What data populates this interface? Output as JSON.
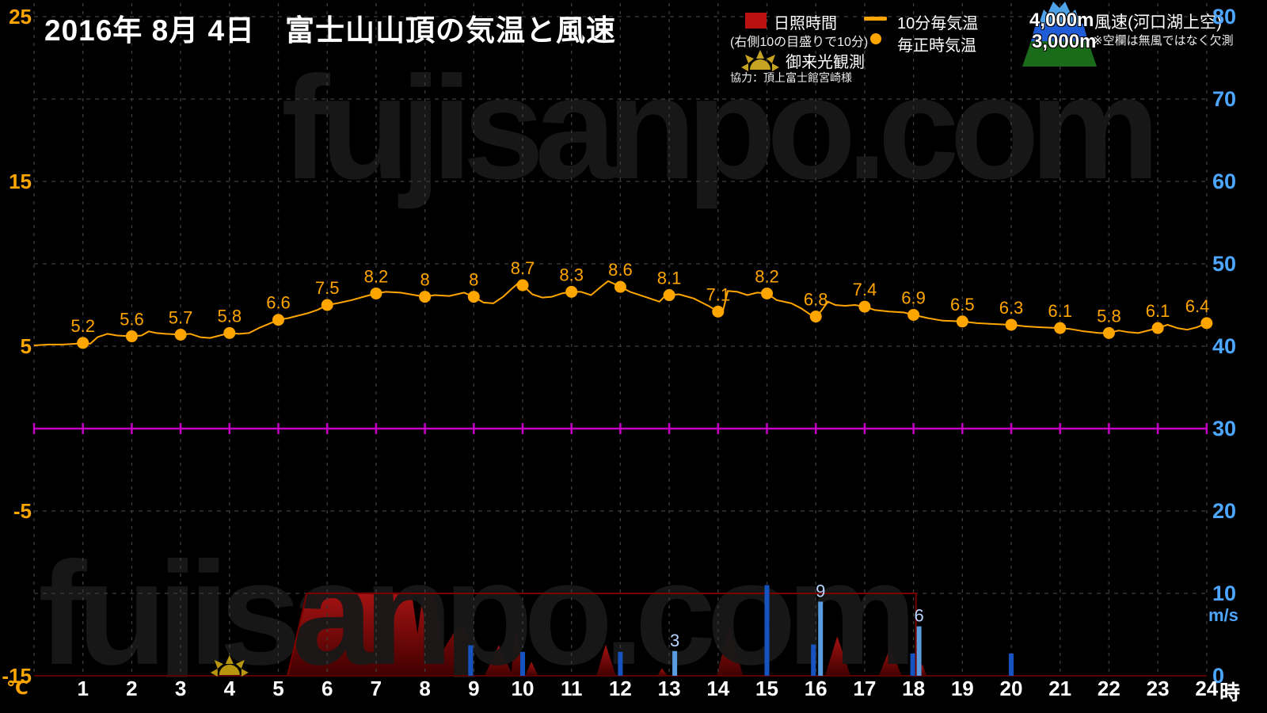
{
  "title": "2016年 8月 4日　富士山山頂の気温と風速",
  "watermark": "fujisanpo.com",
  "legend": {
    "sunshine_label": "日照時間",
    "sunshine_note": "(右側10の目盛りで10分)",
    "sunrise_label": "御来光観測",
    "credit": "協力：頂上富士館宮崎様",
    "line_label": "10分毎気温",
    "dot_label": "毎正時気温",
    "alt_4000": "4,000m",
    "alt_3000": "3,000m",
    "wind_label": "風速(河口湖上空)",
    "wind_note": "※空欄は無風ではなく欠測"
  },
  "axes": {
    "temp_unit": "℃",
    "wind_unit": "m/s",
    "hour_unit": "時",
    "temp_ticks": [
      25,
      15,
      5,
      -5,
      -15
    ],
    "wind_ticks": [
      80,
      70,
      60,
      50,
      40,
      30,
      20,
      10,
      0
    ],
    "hours": [
      1,
      2,
      3,
      4,
      5,
      6,
      7,
      8,
      9,
      10,
      11,
      12,
      13,
      14,
      15,
      16,
      17,
      18,
      19,
      20,
      21,
      22,
      23,
      24
    ],
    "temp_range": [
      -15,
      25
    ],
    "wind_range": [
      0,
      80
    ],
    "grid_step_temp": 5
  },
  "colors": {
    "temp_orange": "#ffa500",
    "wind_axis_blue": "#4da6ff",
    "wind_bar_3000m": "#1553c0",
    "wind_bar_4000m": "#5b9be0",
    "wind_bar_label": "#b9d4ff",
    "zero_line_magenta": "#c400c4",
    "sunshine_top": "#a51212",
    "sunshine_bottom": "#400000",
    "sunshine_ref_line": "#7a0000",
    "grid_gray": "#3d3d3d",
    "sun_gold": "#b8960f",
    "watermark_gray": "#181818"
  },
  "chart_data": {
    "type": "composite",
    "x_unit": "hour",
    "xlim": [
      0,
      24
    ],
    "ylim_temp_c": [
      -15,
      25
    ],
    "ylim_wind_ms": [
      0,
      80
    ],
    "series": [
      {
        "name": "毎正時気温",
        "type": "scatter",
        "x": [
          1,
          2,
          3,
          4,
          5,
          6,
          7,
          8,
          9,
          10,
          11,
          12,
          13,
          14,
          15,
          16,
          17,
          18,
          19,
          20,
          21,
          22,
          23,
          24
        ],
        "values": [
          5.2,
          5.6,
          5.7,
          5.8,
          6.6,
          7.5,
          8.2,
          8,
          8,
          8.7,
          8.3,
          8.6,
          8.1,
          7.1,
          8.2,
          6.8,
          7.4,
          6.9,
          6.5,
          6.3,
          6.1,
          5.8,
          6.1,
          6.4
        ],
        "labels": [
          "5.2",
          "5.6",
          "5.7",
          "5.8",
          "6.6",
          "7.5",
          "8.2",
          "8",
          "8",
          "8.7",
          "8.3",
          "8.6",
          "8.1",
          "7.1",
          "8.2",
          "6.8",
          "7.4",
          "6.9",
          "6.5",
          "6.3",
          "6.1",
          "5.8",
          "6.1",
          "6.4"
        ]
      },
      {
        "name": "10分毎気温",
        "type": "line",
        "points": [
          [
            0,
            5.05
          ],
          [
            0.3,
            5.1
          ],
          [
            0.6,
            5.1
          ],
          [
            0.85,
            5.15
          ],
          [
            1,
            5.2
          ],
          [
            1.15,
            5.15
          ],
          [
            1.3,
            5.55
          ],
          [
            1.5,
            5.75
          ],
          [
            1.7,
            5.65
          ],
          [
            2,
            5.6
          ],
          [
            2.2,
            5.65
          ],
          [
            2.35,
            5.9
          ],
          [
            2.5,
            5.8
          ],
          [
            2.7,
            5.75
          ],
          [
            3,
            5.7
          ],
          [
            3.2,
            5.75
          ],
          [
            3.4,
            5.55
          ],
          [
            3.6,
            5.5
          ],
          [
            3.8,
            5.65
          ],
          [
            4,
            5.8
          ],
          [
            4.2,
            5.75
          ],
          [
            4.4,
            5.8
          ],
          [
            4.6,
            6.1
          ],
          [
            4.8,
            6.35
          ],
          [
            5,
            6.6
          ],
          [
            5.2,
            6.7
          ],
          [
            5.4,
            6.85
          ],
          [
            5.6,
            7
          ],
          [
            5.8,
            7.2
          ],
          [
            6,
            7.5
          ],
          [
            6.2,
            7.6
          ],
          [
            6.5,
            7.8
          ],
          [
            6.8,
            8.05
          ],
          [
            7,
            8.2
          ],
          [
            7.2,
            8.3
          ],
          [
            7.5,
            8.25
          ],
          [
            7.7,
            8.15
          ],
          [
            8,
            8
          ],
          [
            8.2,
            8.1
          ],
          [
            8.5,
            8.05
          ],
          [
            8.8,
            8.25
          ],
          [
            9,
            8
          ],
          [
            9.2,
            7.65
          ],
          [
            9.4,
            7.6
          ],
          [
            9.6,
            8
          ],
          [
            9.8,
            8.55
          ],
          [
            9.9,
            8.8
          ],
          [
            10,
            8.7
          ],
          [
            10.2,
            8.15
          ],
          [
            10.4,
            7.95
          ],
          [
            10.6,
            8
          ],
          [
            10.8,
            8.2
          ],
          [
            11,
            8.3
          ],
          [
            11.2,
            8.3
          ],
          [
            11.4,
            8.1
          ],
          [
            11.6,
            8.6
          ],
          [
            11.75,
            8.95
          ],
          [
            11.9,
            8.75
          ],
          [
            12,
            8.6
          ],
          [
            12.2,
            8.3
          ],
          [
            12.5,
            8
          ],
          [
            12.8,
            7.7
          ],
          [
            12.9,
            8
          ],
          [
            13,
            8.1
          ],
          [
            13.2,
            8.15
          ],
          [
            13.5,
            7.9
          ],
          [
            13.8,
            7.45
          ],
          [
            14,
            7.1
          ],
          [
            14.1,
            7.15
          ],
          [
            14.2,
            8.35
          ],
          [
            14.4,
            8.3
          ],
          [
            14.6,
            8.1
          ],
          [
            14.8,
            8.25
          ],
          [
            15,
            8.2
          ],
          [
            15.2,
            7.8
          ],
          [
            15.5,
            7.6
          ],
          [
            15.7,
            7.3
          ],
          [
            15.9,
            6.9
          ],
          [
            16,
            6.8
          ],
          [
            16.1,
            7.1
          ],
          [
            16.25,
            7.7
          ],
          [
            16.4,
            7.5
          ],
          [
            16.6,
            7.45
          ],
          [
            16.8,
            7.5
          ],
          [
            17,
            7.4
          ],
          [
            17.2,
            7.2
          ],
          [
            17.5,
            7.1
          ],
          [
            17.8,
            7.05
          ],
          [
            18,
            6.9
          ],
          [
            18.3,
            6.7
          ],
          [
            18.6,
            6.55
          ],
          [
            19,
            6.5
          ],
          [
            19.3,
            6.4
          ],
          [
            19.6,
            6.35
          ],
          [
            20,
            6.3
          ],
          [
            20.3,
            6.2
          ],
          [
            20.6,
            6.15
          ],
          [
            21,
            6.1
          ],
          [
            21.2,
            6.05
          ],
          [
            21.5,
            5.9
          ],
          [
            21.8,
            5.8
          ],
          [
            22,
            5.8
          ],
          [
            22.2,
            5.95
          ],
          [
            22.4,
            5.85
          ],
          [
            22.6,
            5.8
          ],
          [
            23,
            6.1
          ],
          [
            23.2,
            6.3
          ],
          [
            23.4,
            6.1
          ],
          [
            23.6,
            6
          ],
          [
            23.8,
            6.15
          ],
          [
            24,
            6.4
          ]
        ]
      },
      {
        "name": "風速",
        "type": "bar",
        "unit": "m/s",
        "bars": [
          {
            "hour": 9,
            "altitude": "3000m",
            "value": 3.7,
            "dx": -7
          },
          {
            "hour": 10,
            "altitude": "3000m",
            "value": 2.9,
            "dx": -3
          },
          {
            "hour": 12,
            "altitude": "3000m",
            "value": 2.9,
            "dx": -3
          },
          {
            "hour": 13,
            "altitude": "4000m",
            "value": 3,
            "dx": 4,
            "label": "3"
          },
          {
            "hour": 15,
            "altitude": "3000m",
            "value": 11,
            "dx": -3
          },
          {
            "hour": 16,
            "altitude": "3000m",
            "value": 3.8,
            "dx": -6
          },
          {
            "hour": 16,
            "altitude": "4000m",
            "value": 9,
            "dx": 3,
            "label": "9"
          },
          {
            "hour": 18,
            "altitude": "3000m",
            "value": 2.7,
            "dx": -4
          },
          {
            "hour": 18,
            "altitude": "4000m",
            "value": 6,
            "dx": 4,
            "label": "6"
          },
          {
            "hour": 20,
            "altitude": "3000m",
            "value": 2.7,
            "dx": -3
          }
        ]
      },
      {
        "name": "日照時間",
        "type": "area",
        "scale_note": "right axis 10 = 10 minutes",
        "ref_line": [
          [
            5.19,
            0
          ],
          [
            5.58,
            10
          ],
          [
            18.05,
            10
          ],
          [
            18.05,
            0
          ]
        ],
        "shapes": [
          [
            [
              5.19,
              0
            ],
            [
              5.58,
              10
            ],
            [
              7.73,
              10
            ],
            [
              7.85,
              5.1
            ],
            [
              7.96,
              10
            ],
            [
              8.2,
              10
            ],
            [
              8.38,
              3.2
            ],
            [
              8.59,
              5.2
            ],
            [
              8.78,
              6.1
            ],
            [
              8.87,
              5.6
            ],
            [
              9,
              0
            ]
          ],
          [
            [
              9.22,
              0
            ],
            [
              9.51,
              3.7
            ],
            [
              9.8,
              0
            ]
          ],
          [
            [
              9.76,
              0
            ],
            [
              9.87,
              5.9
            ],
            [
              10.03,
              0
            ]
          ],
          [
            [
              10.05,
              0
            ],
            [
              10.18,
              1.7
            ],
            [
              10.32,
              0
            ]
          ],
          [
            [
              11.51,
              0
            ],
            [
              11.7,
              3.8
            ],
            [
              11.91,
              0
            ]
          ],
          [
            [
              12.76,
              0
            ],
            [
              12.85,
              0.9
            ],
            [
              12.97,
              0
            ]
          ],
          [
            [
              13.97,
              0
            ],
            [
              14.23,
              5.9
            ],
            [
              14.51,
              0
            ]
          ],
          [
            [
              16.19,
              0
            ],
            [
              16.44,
              4.8
            ],
            [
              16.71,
              0
            ]
          ],
          [
            [
              17.29,
              0
            ],
            [
              17.52,
              3.4
            ],
            [
              17.76,
              0
            ]
          ],
          [
            [
              18.1,
              0
            ],
            [
              18.18,
              1.4
            ],
            [
              18.27,
              0
            ]
          ]
        ]
      },
      {
        "name": "御来光観測",
        "type": "marker",
        "marker": "sun",
        "hour": 4
      }
    ]
  }
}
